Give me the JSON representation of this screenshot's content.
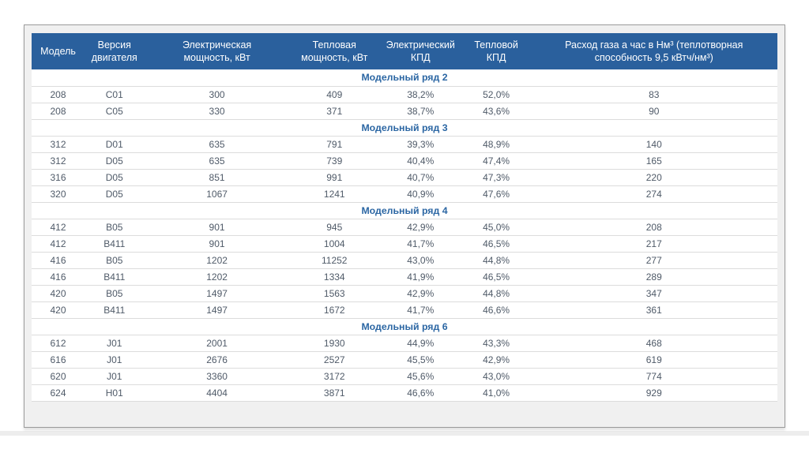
{
  "table": {
    "columns": [
      "Модель",
      "Версия\nдвигателя",
      "Электрическая\nмощность, кВт",
      "Тепловая\nмощность, кВт",
      "Электрический\nКПД",
      "Тепловой\nКПД",
      "Расход газа а час в Нм³ (теплотворная\nспособность 9,5 кВтч/нм³)"
    ],
    "column_widths_percent": [
      7.1,
      8.0,
      19.5,
      12.0,
      11.1,
      9.2,
      33.1
    ],
    "groups": [
      {
        "title": "Модельный ряд 2",
        "rows": [
          [
            "208",
            "C01",
            "300",
            "409",
            "38,2%",
            "52,0%",
            "83"
          ],
          [
            "208",
            "C05",
            "330",
            "371",
            "38,7%",
            "43,6%",
            "90"
          ]
        ]
      },
      {
        "title": "Модельный ряд 3",
        "rows": [
          [
            "312",
            "D01",
            "635",
            "791",
            "39,3%",
            "48,9%",
            "140"
          ],
          [
            "312",
            "D05",
            "635",
            "739",
            "40,4%",
            "47,4%",
            "165"
          ],
          [
            "316",
            "D05",
            "851",
            "991",
            "40,7%",
            "47,3%",
            "220"
          ],
          [
            "320",
            "D05",
            "1067",
            "1241",
            "40,9%",
            "47,6%",
            "274"
          ]
        ]
      },
      {
        "title": "Модельный ряд 4",
        "rows": [
          [
            "412",
            "B05",
            "901",
            "945",
            "42,9%",
            "45,0%",
            "208"
          ],
          [
            "412",
            "B411",
            "901",
            "1004",
            "41,7%",
            "46,5%",
            "217"
          ],
          [
            "416",
            "B05",
            "1202",
            "11252",
            "43,0%",
            "44,8%",
            "277"
          ],
          [
            "416",
            "B411",
            "1202",
            "1334",
            "41,9%",
            "46,5%",
            "289"
          ],
          [
            "420",
            "B05",
            "1497",
            "1563",
            "42,9%",
            "44,8%",
            "347"
          ],
          [
            "420",
            "B411",
            "1497",
            "1672",
            "41,7%",
            "46,6%",
            "361"
          ]
        ]
      },
      {
        "title": "Модельный ряд 6",
        "rows": [
          [
            "612",
            "J01",
            "2001",
            "1930",
            "44,9%",
            "43,3%",
            "468"
          ],
          [
            "616",
            "J01",
            "2676",
            "2527",
            "45,5%",
            "42,9%",
            "619"
          ],
          [
            "620",
            "J01",
            "3360",
            "3172",
            "45,6%",
            "43,0%",
            "774"
          ],
          [
            "624",
            "H01",
            "4404",
            "3871",
            "46,6%",
            "41,0%",
            "929"
          ]
        ]
      }
    ]
  },
  "colors": {
    "header_bg": "#2a609d",
    "header_text": "#ffffff",
    "group_title_text": "#2b66a3",
    "cell_text": "#4f5a68",
    "row_border": "#dcdcdc",
    "panel_border": "#9b9b9b",
    "panel_bg": "#f0f0f0",
    "page_bg": "#ffffff"
  }
}
